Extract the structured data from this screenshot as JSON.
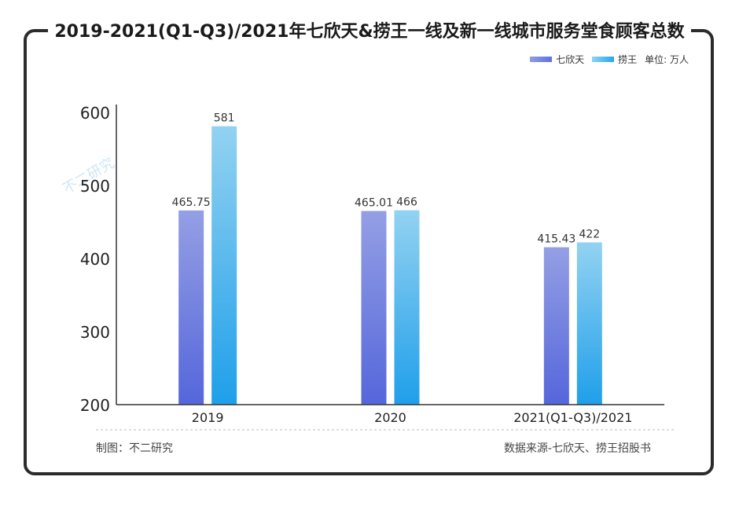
{
  "title": "2019-2021(Q1-Q3)/2021年七欣天&捞王一线及新一线城市服务堂食顾客总数",
  "legend": {
    "unit": "单位: 万人"
  },
  "footer": {
    "maker": "制图：不二研究",
    "source": "数据来源-七欣天、捞王招股书"
  },
  "watermark": "不二研究",
  "colors": {
    "series1": "#5d73dd",
    "series2": "#27a6ea",
    "frame": "#2b2b2b",
    "watermark": "#cfe6f6"
  },
  "chart_data": {
    "type": "bar",
    "categories": [
      "2019",
      "2020",
      "2021(Q1-Q3)/2021"
    ],
    "series": [
      {
        "name": "七欣天",
        "values": [
          465.75,
          465.01,
          415.43
        ],
        "labels": [
          "465.75",
          "465.01",
          "415.43"
        ]
      },
      {
        "name": "捞王",
        "values": [
          581,
          466,
          422
        ],
        "labels": [
          "581",
          "466",
          "422"
        ]
      }
    ],
    "ylim": [
      200,
      600
    ],
    "yticks": [
      200,
      300,
      400,
      500,
      600
    ],
    "xlabel": "",
    "ylabel": "",
    "grid": false,
    "legend_position": "top-right"
  }
}
